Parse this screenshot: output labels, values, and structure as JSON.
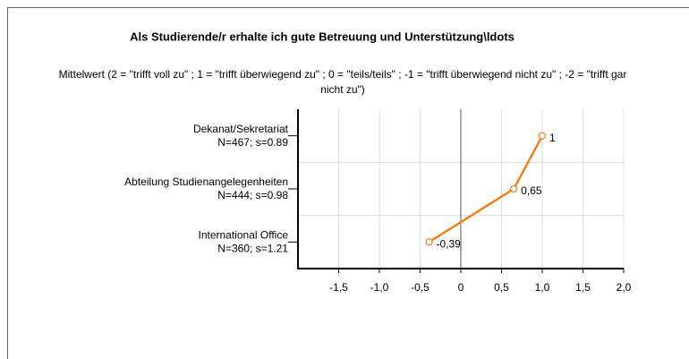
{
  "chart_data": {
    "type": "line",
    "orientation": "horizontal",
    "title": "Als Studierende/r erhalte ich gute Betreuung und Unterstützung\\ldots",
    "subtitle": [
      "Mittelwert (2 = \"trifft voll zu\" ; 1 = \"trifft überwiegend zu\" ; 0 = \"teils/teils\" ; -1 = \"trifft überwiegend nicht zu\" ; -2 = \"trifft gar",
      "nicht zu\")"
    ],
    "categories": [
      "Dekanat/Sekretariat",
      "Abteilung Studienangelegenheiten",
      "International Office"
    ],
    "category_stats": [
      "N=467; s=0.89",
      "N=444; s=0.98",
      "N=360; s=1.21"
    ],
    "values": [
      1,
      0.65,
      -0.39
    ],
    "value_labels": [
      "1",
      "0,65",
      "-0,39"
    ],
    "color": "#f07f1e",
    "xlim": [
      -2,
      2
    ],
    "xticks": [
      {
        "value": -1.5,
        "label": "-1,5"
      },
      {
        "value": -1,
        "label": "-1,0"
      },
      {
        "value": -0.5,
        "label": "-0,5"
      },
      0,
      {
        "value": 0.5,
        "label": "0,5"
      },
      {
        "value": 1,
        "label": "1,0"
      },
      {
        "value": 1.5,
        "label": "1,5"
      },
      {
        "value": 2,
        "label": "2,0"
      }
    ],
    "grid": true
  }
}
